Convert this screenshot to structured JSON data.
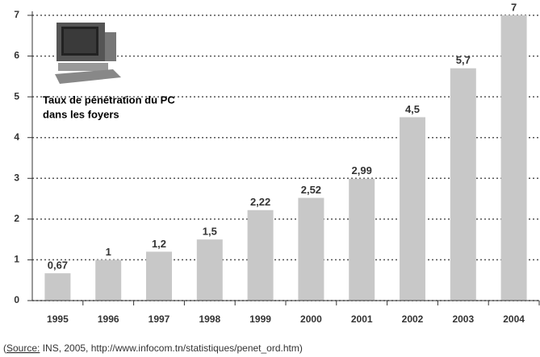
{
  "chart_data": {
    "type": "bar",
    "title": [
      "Taux de pénétration du PC",
      "dans les foyers"
    ],
    "categories": [
      "1995",
      "1996",
      "1997",
      "1998",
      "1999",
      "2000",
      "2001",
      "2002",
      "2003",
      "2004"
    ],
    "values": [
      0.67,
      1,
      1.2,
      1.5,
      2.22,
      2.52,
      2.99,
      4.5,
      5.7,
      7
    ],
    "value_labels": [
      "0,67",
      "1",
      "1,2",
      "1,5",
      "2,22",
      "2,52",
      "2,99",
      "4,5",
      "5,7",
      "7"
    ],
    "color": "#c8c8c8",
    "ylim": [
      0,
      7
    ],
    "yticks": [
      0,
      1,
      2,
      3,
      4,
      5,
      6,
      7
    ],
    "grid": true,
    "source": {
      "open": "(",
      "label": "Source:",
      "text": " INS, 2005, http://www.infocom.tn/statistiques/penet_ord.htm)"
    }
  }
}
